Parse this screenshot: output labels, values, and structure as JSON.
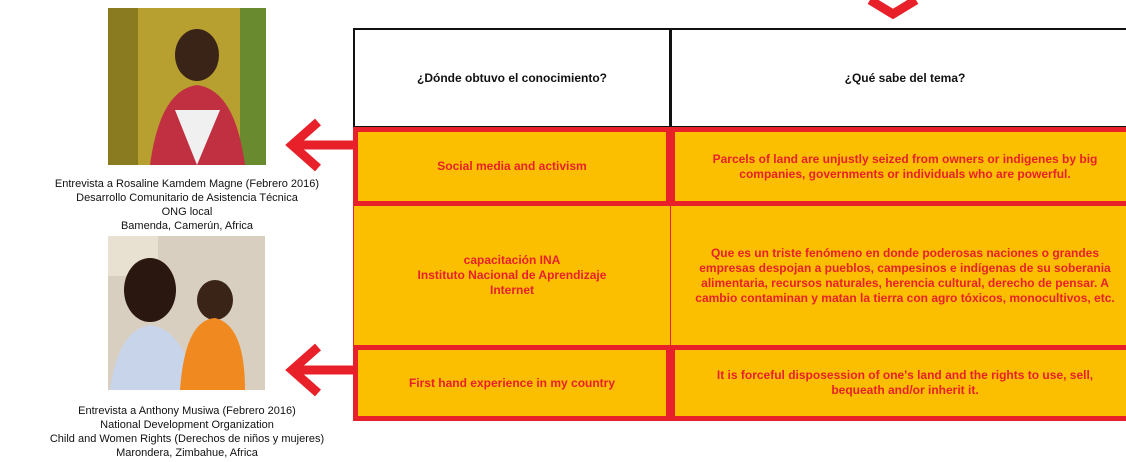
{
  "profiles": [
    {
      "lines": [
        "Entrevista a Rosaline Kamdem Magne (Febrero 2016)",
        "Desarrollo Comunitario de Asistencia Técnica",
        "ONG local",
        "Bamenda, Camerún, Africa"
      ]
    },
    {
      "lines": [
        "Entrevista a Anthony Musiwa (Febrero 2016)",
        "National Development Organization",
        "Child and Women Rights (Derechos de niños y mujeres)",
        "Marondera, Zimbahue, Africa"
      ]
    }
  ],
  "table": {
    "header": [
      "¿Dónde obtuvo el conocimiento?",
      "¿Qué sabe del tema?"
    ],
    "rows": [
      [
        [
          "Social media and activism"
        ],
        [
          "Parcels of land are unjustly seized from owners or indigenes by big",
          "companies, governments or individuals who are powerful."
        ]
      ],
      [
        [
          "capacitación INA",
          "Instituto Nacional de Aprendizaje",
          "Internet"
        ],
        [
          "Que es un triste fenómeno en donde poderosas naciones o grandes",
          "empresas despojan a pueblos, campesinos e indígenas de su soberania",
          "alimentaria, recursos naturales, herencia cultural, derecho de pensar. A",
          "cambio contaminan y matan la tierra con agro tóxicos, monocultivos, etc."
        ]
      ],
      [
        [
          "First hand experience in my country"
        ],
        [
          "It is forceful disposession of one's land and the rights to use, sell,",
          "bequeath  and/or inherit it."
        ]
      ]
    ]
  }
}
